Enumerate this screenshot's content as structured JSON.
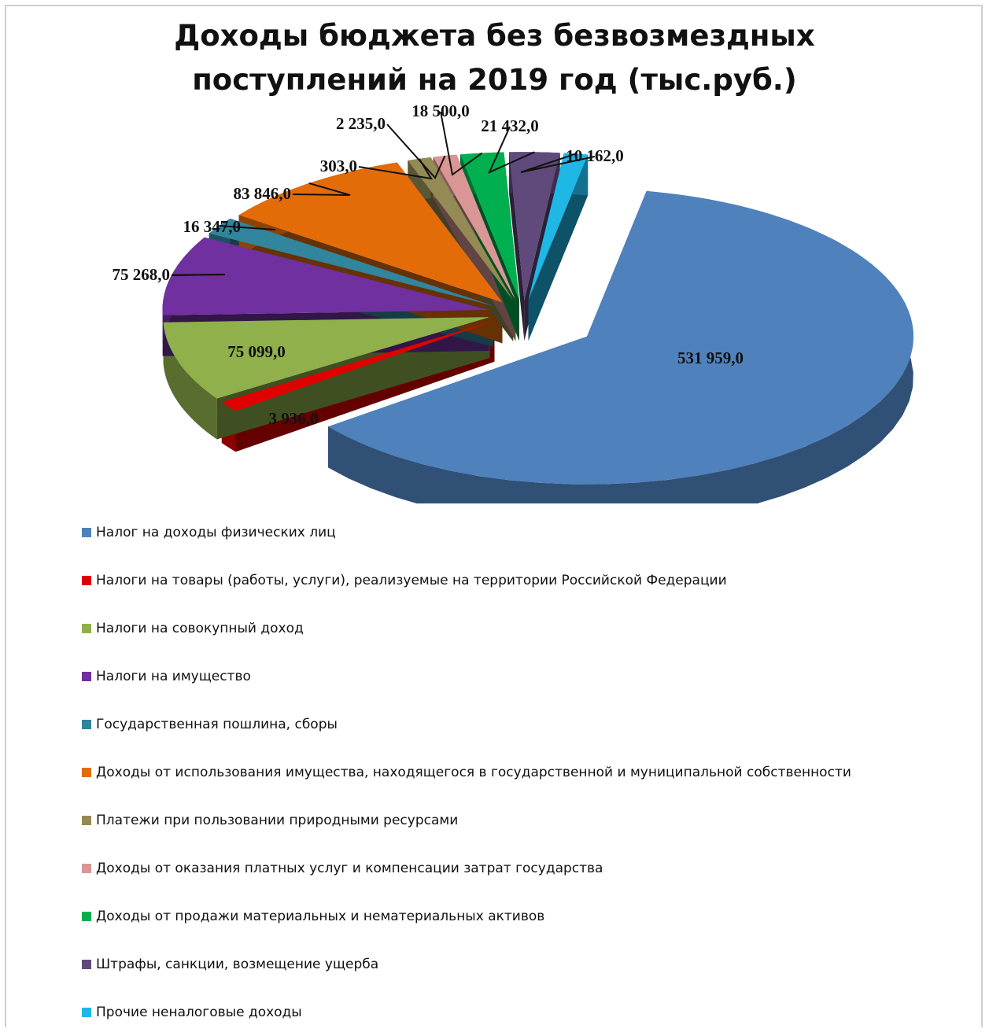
{
  "chart_data": {
    "type": "pie",
    "title": "Доходы бюджета без безвозмездных поступлений на 2019 год (тыс.руб.)",
    "title_lines": [
      "Доходы бюджета без безвозмездных",
      "поступлений на 2019 год (тыс.руб.)"
    ],
    "legend_position": "bottom",
    "slices": [
      {
        "name": "Налог на доходы физических лиц",
        "value": 531959.0,
        "label": "531 959,0",
        "color": "#4f81bd"
      },
      {
        "name": "Налоги на товары (работы, услуги), реализуемые на территории Российской Федерации",
        "value": 3936.0,
        "label": "3 936,0",
        "color": "#e00000"
      },
      {
        "name": "Налоги на совокупный доход",
        "value": 75099.0,
        "label": "75 099,0",
        "color": "#8fb04a"
      },
      {
        "name": "Налоги на имущество",
        "value": 75268.0,
        "label": "75 268,0",
        "color": "#7030a0"
      },
      {
        "name": "Государственная пошлина, сборы",
        "value": 16347.0,
        "label": "16 347,0",
        "color": "#31859c"
      },
      {
        "name": "Доходы от использования имущества, находящегося в государственной и муниципальной собственности",
        "value": 83846.0,
        "label": "83 846,0",
        "color": "#e36c09"
      },
      {
        "name": "Платежи при пользовании природными ресурсами",
        "value": 303.0,
        "label": "303,0",
        "color": "#948a54"
      },
      {
        "name": "Доходы от оказания платных услуг и компенсации затрат государства",
        "value": 2235.0,
        "label": "2 235,0",
        "color": "#d99694"
      },
      {
        "name": "Доходы от продажи материальных и нематериальных активов",
        "value": 18500.0,
        "label": "18 500,0",
        "color": "#00b050"
      },
      {
        "name": "Штрафы, санкции, возмещение ущерба",
        "value": 21432.0,
        "label": "21 432,0",
        "color": "#604a7b"
      },
      {
        "name": "Прочие неналоговые доходы",
        "value": 10162.0,
        "label": "10 162,0",
        "color": "#1fb7e6"
      }
    ]
  }
}
